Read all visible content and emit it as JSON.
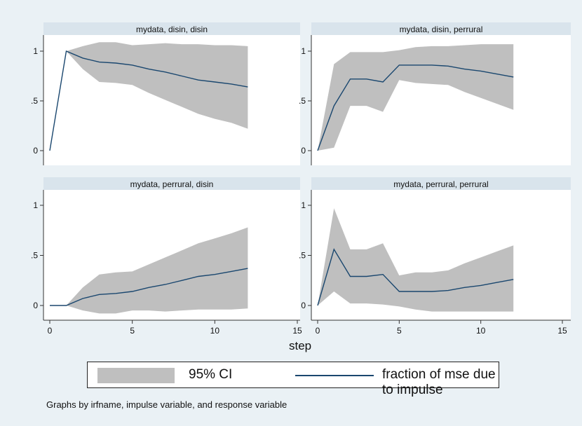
{
  "chart_data": {
    "type": "line",
    "layout": "2x2 panels",
    "xlabel": "step",
    "xlim": [
      0,
      15
    ],
    "xticks": [
      0,
      5,
      10,
      15
    ],
    "ylim": [
      0,
      1.05
    ],
    "yticks": [
      0,
      0.5,
      1
    ],
    "ytick_labels": [
      "0",
      ".5",
      "1"
    ],
    "grid": false,
    "legend": {
      "placement": "bottom",
      "entries": [
        "95% CI",
        "fraction of mse due to impulse"
      ]
    },
    "note": "Graphs by irfname, impulse variable, and response variable",
    "colors": {
      "background": "#eaf1f5",
      "strip": "#d9e4ec",
      "ci_fill": "#bfbfbf",
      "line": "#1a476f"
    },
    "panels": [
      {
        "title": "mydata, disin, disin",
        "x": [
          0,
          1,
          2,
          3,
          4,
          5,
          6,
          7,
          8,
          9,
          10,
          11,
          12
        ],
        "fraction": [
          0,
          1.0,
          0.93,
          0.89,
          0.88,
          0.86,
          0.82,
          0.79,
          0.75,
          0.71,
          0.69,
          0.67,
          0.64
        ],
        "lower": [
          0,
          1.0,
          0.82,
          0.69,
          0.68,
          0.66,
          0.58,
          0.51,
          0.44,
          0.37,
          0.32,
          0.28,
          0.22
        ],
        "upper": [
          0,
          1.0,
          1.05,
          1.09,
          1.09,
          1.06,
          1.07,
          1.08,
          1.07,
          1.07,
          1.06,
          1.06,
          1.05
        ]
      },
      {
        "title": "mydata, disin, perrural",
        "x": [
          0,
          1,
          2,
          3,
          4,
          5,
          6,
          7,
          8,
          9,
          10,
          11,
          12
        ],
        "fraction": [
          0,
          0.45,
          0.72,
          0.72,
          0.69,
          0.86,
          0.86,
          0.86,
          0.85,
          0.82,
          0.8,
          0.77,
          0.74
        ],
        "lower": [
          0,
          0.03,
          0.45,
          0.45,
          0.39,
          0.71,
          0.68,
          0.67,
          0.66,
          0.59,
          0.53,
          0.47,
          0.41
        ],
        "upper": [
          0,
          0.87,
          0.99,
          0.99,
          0.99,
          1.01,
          1.04,
          1.05,
          1.05,
          1.06,
          1.07,
          1.07,
          1.07
        ]
      },
      {
        "title": "mydata, perrural, disin",
        "x": [
          0,
          1,
          2,
          3,
          4,
          5,
          6,
          7,
          8,
          9,
          10,
          11,
          12
        ],
        "fraction": [
          0,
          0,
          0.07,
          0.11,
          0.12,
          0.14,
          0.18,
          0.21,
          0.25,
          0.29,
          0.31,
          0.34,
          0.37
        ],
        "lower": [
          0,
          0,
          -0.05,
          -0.08,
          -0.08,
          -0.05,
          -0.05,
          -0.06,
          -0.05,
          -0.04,
          -0.04,
          -0.04,
          -0.03
        ],
        "upper": [
          0,
          0,
          0.18,
          0.31,
          0.33,
          0.34,
          0.41,
          0.48,
          0.55,
          0.62,
          0.67,
          0.72,
          0.78
        ]
      },
      {
        "title": "mydata, perrural, perrural",
        "x": [
          0,
          1,
          2,
          3,
          4,
          5,
          6,
          7,
          8,
          9,
          10,
          11,
          12
        ],
        "fraction": [
          0,
          0.56,
          0.29,
          0.29,
          0.31,
          0.14,
          0.14,
          0.14,
          0.15,
          0.18,
          0.2,
          0.23,
          0.26
        ],
        "lower": [
          0,
          0.14,
          0.02,
          0.02,
          0.01,
          -0.01,
          -0.04,
          -0.06,
          -0.06,
          -0.06,
          -0.06,
          -0.06,
          -0.06
        ],
        "upper": [
          0,
          0.97,
          0.56,
          0.56,
          0.62,
          0.3,
          0.33,
          0.33,
          0.35,
          0.42,
          0.48,
          0.54,
          0.6
        ]
      }
    ]
  }
}
